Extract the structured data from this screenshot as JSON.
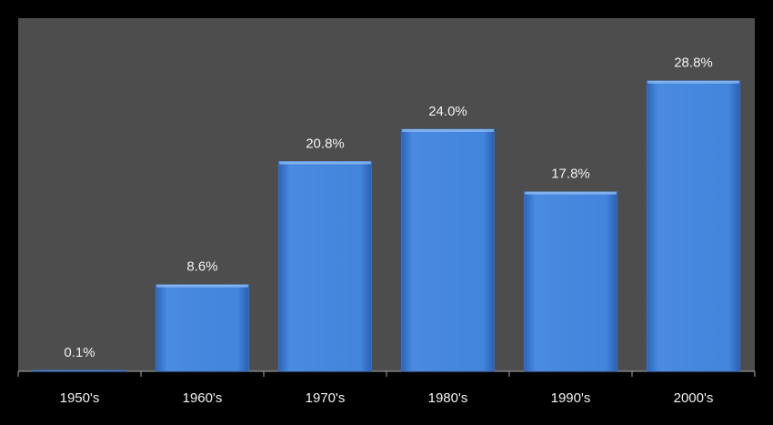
{
  "chart_data": {
    "type": "bar",
    "categories": [
      "1950's",
      "1960's",
      "1970's",
      "1980's",
      "1990's",
      "2000's"
    ],
    "values": [
      0.1,
      8.6,
      20.8,
      24.0,
      17.8,
      28.8
    ],
    "value_labels": [
      "0.1%",
      "8.6%",
      "20.8%",
      "24.0%",
      "17.8%",
      "28.8%"
    ],
    "color": "#3c7dd9",
    "ylim": [
      0,
      35
    ]
  }
}
